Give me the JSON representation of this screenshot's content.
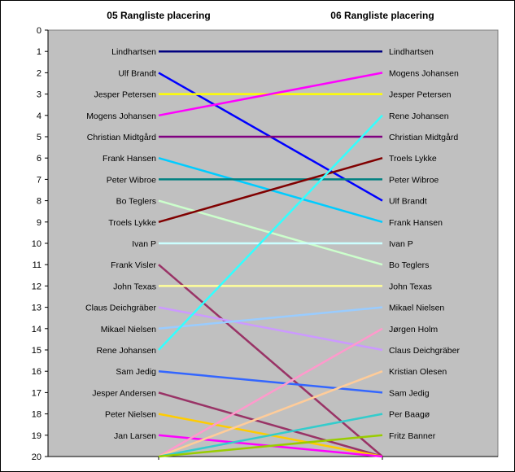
{
  "chart_data": {
    "type": "line",
    "title": "",
    "categories": [
      "05 Rangliste placering",
      "06 Rangliste placering"
    ],
    "ylim": [
      0,
      20
    ],
    "y_reversed": true,
    "yticks": [
      "0",
      "1",
      "2",
      "3",
      "4",
      "5",
      "6",
      "7",
      "8",
      "9",
      "10",
      "11",
      "12",
      "13",
      "14",
      "15",
      "16",
      "17",
      "18",
      "19",
      "20"
    ],
    "plot_background": "#c0c0c0",
    "grid": false,
    "legend": "none",
    "series": [
      {
        "name": "Lindhartsen",
        "values": [
          1,
          1
        ],
        "color": "#000080"
      },
      {
        "name": "Ulf Brandt",
        "values": [
          2,
          8
        ],
        "color": "#0000ff"
      },
      {
        "name": "Jesper Petersen",
        "values": [
          3,
          3
        ],
        "color": "#ffff00"
      },
      {
        "name": "Mogens Johansen",
        "values": [
          4,
          2
        ],
        "color": "#ff00ff"
      },
      {
        "name": "Christian Midtgård",
        "values": [
          5,
          5
        ],
        "color": "#800080"
      },
      {
        "name": "Frank Hansen",
        "values": [
          6,
          9
        ],
        "color": "#00ccff"
      },
      {
        "name": "Peter Wibroe",
        "values": [
          7,
          7
        ],
        "color": "#008080"
      },
      {
        "name": "Bo Teglers",
        "values": [
          8,
          11
        ],
        "color": "#ccffcc"
      },
      {
        "name": "Troels Lykke",
        "values": [
          9,
          6
        ],
        "color": "#800000"
      },
      {
        "name": "Ivan P",
        "values": [
          10,
          10
        ],
        "color": "#ccffff"
      },
      {
        "name": "Frank Visler",
        "values": [
          11,
          20
        ],
        "color": "#993366"
      },
      {
        "name": "John Texas",
        "values": [
          12,
          12
        ],
        "color": "#ffff99"
      },
      {
        "name": "Claus Deichgräber",
        "values": [
          13,
          15
        ],
        "color": "#cc99ff"
      },
      {
        "name": "Mikael Nielsen",
        "values": [
          14,
          13
        ],
        "color": "#99ccff"
      },
      {
        "name": "Rene Johansen",
        "values": [
          15,
          4
        ],
        "color": "#33ffff"
      },
      {
        "name": "Sam Jedig",
        "values": [
          16,
          17
        ],
        "color": "#3366ff"
      },
      {
        "name": "Jesper Andersen",
        "values": [
          17,
          20
        ],
        "color": "#993366"
      },
      {
        "name": "Peter Nielsen",
        "values": [
          18,
          20
        ],
        "color": "#ffcc00"
      },
      {
        "name": "Jan Larsen",
        "values": [
          19,
          20
        ],
        "color": "#ff00ff"
      },
      {
        "name": "Jørgen Holm",
        "values": [
          20,
          14
        ],
        "color": "#ff99cc"
      },
      {
        "name": "Kristian Olesen",
        "values": [
          20,
          16
        ],
        "color": "#ffcc99"
      },
      {
        "name": "Per Baagø",
        "values": [
          20,
          18
        ],
        "color": "#33cccc"
      },
      {
        "name": "Fritz Banner",
        "values": [
          20,
          19
        ],
        "color": "#99cc00"
      }
    ]
  }
}
